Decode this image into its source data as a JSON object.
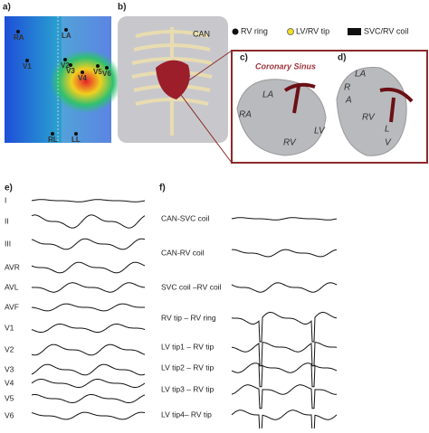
{
  "panels": {
    "a": {
      "label": "a)",
      "electrodes": [
        "RA",
        "LA",
        "V1",
        "V2",
        "V3",
        "V4",
        "V5",
        "V6",
        "RL",
        "LL"
      ]
    },
    "b": {
      "label": "b)",
      "can": "CAN"
    },
    "legend": [
      "RV ring",
      "LV/RV tip",
      "SVC/RV coil"
    ],
    "c": {
      "label": "c)",
      "title": "Coronary Sinus",
      "structures": [
        "LA",
        "RA",
        "RV",
        "LV"
      ]
    },
    "d": {
      "label": "d)",
      "structures": [
        "LA",
        "R",
        "A",
        "RV",
        "L",
        "V"
      ]
    },
    "e": {
      "label": "e)",
      "leads": [
        "I",
        "II",
        "III",
        "AVR",
        "AVL",
        "AVF",
        "V1",
        "V2",
        "V3",
        "V4",
        "V5",
        "V6"
      ]
    },
    "f": {
      "label": "f)",
      "signals": [
        "CAN-SVC coil",
        "CAN-RV coil",
        "SVC coil –RV coil",
        "RV tip – RV ring",
        "LV tip1 – RV tip",
        "LV tip2 – RV tip",
        "LV tip3 – RV tip",
        "LV tip4– RV tip"
      ]
    }
  }
}
